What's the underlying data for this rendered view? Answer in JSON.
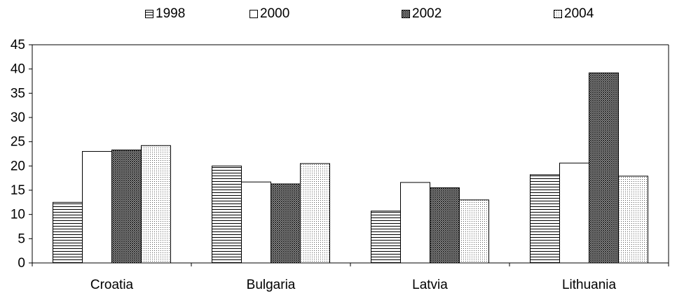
{
  "chart_data": {
    "type": "bar",
    "categories": [
      "Croatia",
      "Bulgaria",
      "Latvia",
      "Lithuania"
    ],
    "series": [
      {
        "name": "1998",
        "values": [
          12.5,
          20.0,
          10.7,
          18.2
        ],
        "pattern": "horizontal-stripes"
      },
      {
        "name": "2000",
        "values": [
          23.0,
          16.7,
          16.6,
          20.6
        ],
        "pattern": "solid-white"
      },
      {
        "name": "2002",
        "values": [
          23.3,
          16.3,
          15.5,
          39.2
        ],
        "pattern": "dense-crosshatch"
      },
      {
        "name": "2004",
        "values": [
          24.2,
          20.5,
          13.0,
          17.9
        ],
        "pattern": "dotted"
      }
    ],
    "ylim": [
      0,
      45
    ],
    "yticks": [
      0,
      5,
      10,
      15,
      20,
      25,
      30,
      35,
      40,
      45
    ],
    "grid": false,
    "legend_position": "top",
    "title": "",
    "xlabel": "",
    "ylabel": ""
  }
}
